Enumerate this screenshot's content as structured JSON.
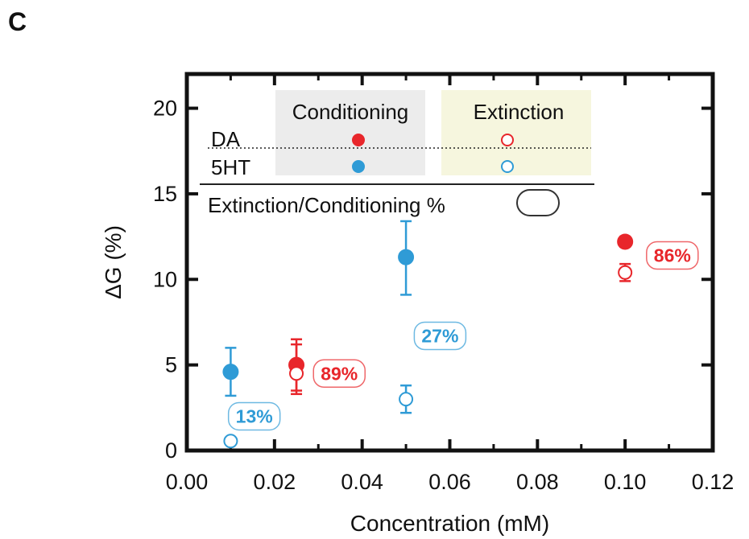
{
  "panel_label": "C",
  "chart_data": {
    "type": "scatter",
    "xlabel": "Concentration (mM)",
    "ylabel": "ΔG (%)",
    "xlim": [
      0,
      0.12
    ],
    "ylim": [
      0,
      22
    ],
    "xticks": [
      0,
      0.02,
      0.04,
      0.06,
      0.08,
      0.1,
      0.12
    ],
    "xtick_labels": [
      "0.00",
      "0.02",
      "0.04",
      "0.06",
      "0.08",
      "0.10",
      "0.12"
    ],
    "yticks": [
      0,
      5,
      10,
      15,
      20
    ],
    "ytick_labels": [
      "0",
      "5",
      "10",
      "15",
      "20"
    ],
    "colors": {
      "DA": "#e8262b",
      "5HT": "#2f9bd6"
    },
    "series": [
      {
        "name": "DA Conditioning",
        "group": "DA",
        "phase": "Conditioning",
        "filled": true,
        "points": [
          {
            "x": 0.025,
            "y": 5.0,
            "err_up": 1.5,
            "err_down": 1.5
          },
          {
            "x": 0.1,
            "y": 12.2,
            "err_up": 0.3,
            "err_down": 0.3
          }
        ]
      },
      {
        "name": "DA Extinction",
        "group": "DA",
        "phase": "Extinction",
        "filled": false,
        "points": [
          {
            "x": 0.025,
            "y": 4.5,
            "err_up": 1.7,
            "err_down": 1.2
          },
          {
            "x": 0.1,
            "y": 10.4,
            "err_up": 0.5,
            "err_down": 0.5
          }
        ]
      },
      {
        "name": "5HT Conditioning",
        "group": "5HT",
        "phase": "Conditioning",
        "filled": true,
        "points": [
          {
            "x": 0.01,
            "y": 4.6,
            "err_up": 1.4,
            "err_down": 1.4
          },
          {
            "x": 0.05,
            "y": 11.3,
            "err_up": 2.1,
            "err_down": 2.2
          }
        ]
      },
      {
        "name": "5HT Extinction",
        "group": "5HT",
        "phase": "Extinction",
        "filled": false,
        "points": [
          {
            "x": 0.01,
            "y": 0.55,
            "err_up": 0.2,
            "err_down": 0.2
          },
          {
            "x": 0.05,
            "y": 3.0,
            "err_up": 0.8,
            "err_down": 0.8
          }
        ]
      }
    ],
    "ratio_labels": [
      {
        "text": "13%",
        "group": "5HT",
        "x": 0.0106,
        "y": 2.0
      },
      {
        "text": "27%",
        "group": "5HT",
        "x": 0.053,
        "y": 6.7
      },
      {
        "text": "89%",
        "group": "DA",
        "x": 0.03,
        "y": 4.5
      },
      {
        "text": "86%",
        "group": "DA",
        "x": 0.106,
        "y": 11.4
      }
    ],
    "legend": {
      "placement": "top-left",
      "col_conditioning": "Conditioning",
      "col_extinction": "Extinction",
      "row_da": "DA",
      "row_5ht": "5HT",
      "ratio_label": "Extinction/Conditioning %",
      "conditioning_bg": "#ececec",
      "extinction_bg": "#f6f6de"
    }
  }
}
